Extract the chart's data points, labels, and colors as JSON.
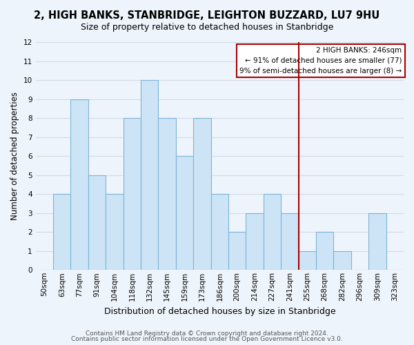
{
  "title": "2, HIGH BANKS, STANBRIDGE, LEIGHTON BUZZARD, LU7 9HU",
  "subtitle": "Size of property relative to detached houses in Stanbridge",
  "xlabel": "Distribution of detached houses by size in Stanbridge",
  "ylabel": "Number of detached properties",
  "bar_labels": [
    "50sqm",
    "63sqm",
    "77sqm",
    "91sqm",
    "104sqm",
    "118sqm",
    "132sqm",
    "145sqm",
    "159sqm",
    "173sqm",
    "186sqm",
    "200sqm",
    "214sqm",
    "227sqm",
    "241sqm",
    "255sqm",
    "268sqm",
    "282sqm",
    "296sqm",
    "309sqm",
    "323sqm"
  ],
  "bar_values": [
    0,
    4,
    9,
    5,
    4,
    8,
    10,
    8,
    6,
    8,
    4,
    2,
    3,
    4,
    3,
    1,
    2,
    1,
    0,
    3,
    0
  ],
  "bar_color": "#cce4f5",
  "bar_edgecolor": "#7db4d8",
  "ylim": [
    0,
    12
  ],
  "yticks": [
    0,
    1,
    2,
    3,
    4,
    5,
    6,
    7,
    8,
    9,
    10,
    11,
    12
  ],
  "vline_x": 14.5,
  "vline_color": "#aa0000",
  "annotation_title": "2 HIGH BANKS: 246sqm",
  "annotation_line1": "← 91% of detached houses are smaller (77)",
  "annotation_line2": "9% of semi-detached houses are larger (8) →",
  "annotation_box_color": "#ffffff",
  "annotation_box_edgecolor": "#aa0000",
  "footer1": "Contains HM Land Registry data © Crown copyright and database right 2024.",
  "footer2": "Contains public sector information licensed under the Open Government Licence v3.0.",
  "background_color": "#eef4fb",
  "grid_color": "#d0dce8",
  "title_fontsize": 10.5,
  "subtitle_fontsize": 9,
  "xlabel_fontsize": 9,
  "ylabel_fontsize": 8.5,
  "tick_fontsize": 7.5,
  "footer_fontsize": 6.5
}
